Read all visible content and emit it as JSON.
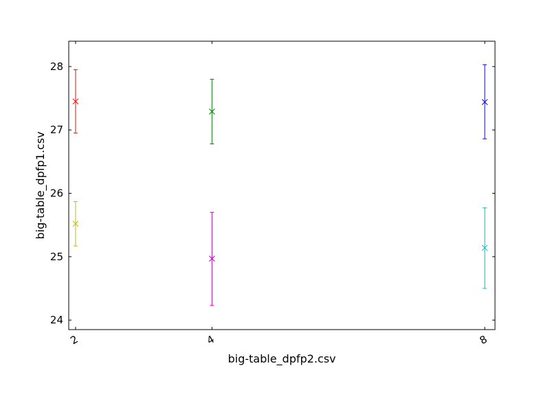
{
  "chart_data": {
    "type": "scatter",
    "title": "",
    "xlabel": "big-table_dpfp2.csv",
    "ylabel": "big-table_dpfp1.csv",
    "xlim": [
      1.9,
      8.15
    ],
    "ylim": [
      23.85,
      28.4
    ],
    "x_ticks": [
      2,
      4,
      8
    ],
    "x_tick_labels": [
      "2",
      "4",
      "8"
    ],
    "y_ticks": [
      24,
      25,
      26,
      27,
      28
    ],
    "y_tick_labels": [
      "24",
      "25",
      "26",
      "27",
      "28"
    ],
    "grid": false,
    "marker": "x",
    "series": [
      {
        "x": 2,
        "y": 27.45,
        "yerr_low": 26.95,
        "yerr_high": 27.95,
        "color": "#ff0000"
      },
      {
        "x": 4,
        "y": 27.29,
        "yerr_low": 26.78,
        "yerr_high": 27.8,
        "color": "#008000"
      },
      {
        "x": 8,
        "y": 27.44,
        "yerr_low": 26.86,
        "yerr_high": 28.03,
        "color": "#0000ff"
      },
      {
        "x": 2,
        "y": 25.52,
        "yerr_low": 25.17,
        "yerr_high": 25.87,
        "color": "#bfbf00"
      },
      {
        "x": 4,
        "y": 24.97,
        "yerr_low": 24.23,
        "yerr_high": 25.7,
        "color": "#bf00bf"
      },
      {
        "x": 8,
        "y": 25.14,
        "yerr_low": 24.5,
        "yerr_high": 25.77,
        "color": "#00bfbf"
      }
    ]
  }
}
